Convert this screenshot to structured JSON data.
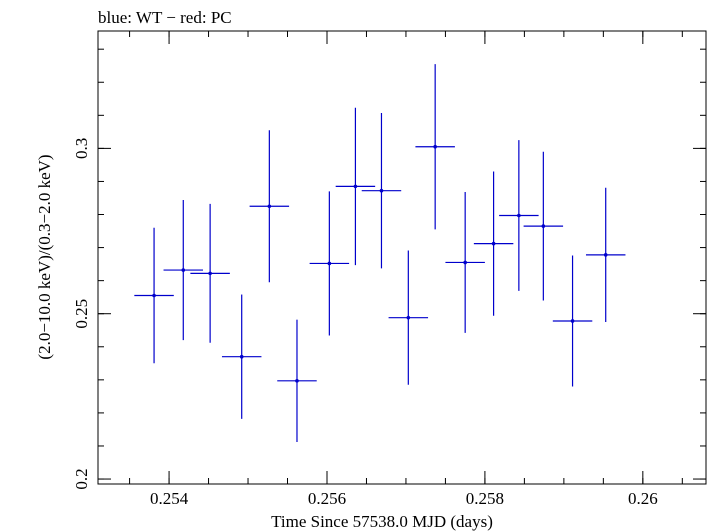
{
  "chart_data": {
    "type": "scatter",
    "title": "blue: WT − red: PC",
    "xlabel": "Time Since 57538.0 MJD (days)",
    "ylabel": "(2.0−10.0 keV)/(0.3−2.0 keV)",
    "xlim": [
      0.2531,
      0.2608
    ],
    "ylim": [
      0.1985,
      0.3355
    ],
    "grid": false,
    "x_ticks": [
      {
        "value": 0.254,
        "label": "0.254"
      },
      {
        "value": 0.256,
        "label": "0.256"
      },
      {
        "value": 0.258,
        "label": "0.258"
      },
      {
        "value": 0.26,
        "label": "0.26"
      }
    ],
    "y_ticks": [
      {
        "value": 0.2,
        "label": "0.2"
      },
      {
        "value": 0.25,
        "label": "0.25"
      },
      {
        "value": 0.3,
        "label": "0.3"
      }
    ],
    "x_minor_step": 0.0005,
    "y_minor_step": 0.01,
    "series": [
      {
        "name": "WT",
        "color": "#0000cc",
        "points": [
          {
            "x": 0.25381,
            "y": 0.2555,
            "xerr": 0.00025,
            "yerr": 0.0205
          },
          {
            "x": 0.25418,
            "y": 0.2632,
            "xerr": 0.00025,
            "yerr": 0.0212
          },
          {
            "x": 0.25452,
            "y": 0.2622,
            "xerr": 0.00025,
            "yerr": 0.021
          },
          {
            "x": 0.25492,
            "y": 0.237,
            "xerr": 0.00025,
            "yerr": 0.0188
          },
          {
            "x": 0.25527,
            "y": 0.2825,
            "xerr": 0.00025,
            "yerr": 0.023
          },
          {
            "x": 0.25562,
            "y": 0.2297,
            "xerr": 0.00025,
            "yerr": 0.0185
          },
          {
            "x": 0.25603,
            "y": 0.2652,
            "xerr": 0.00025,
            "yerr": 0.0218
          },
          {
            "x": 0.25636,
            "y": 0.2885,
            "xerr": 0.00025,
            "yerr": 0.0238
          },
          {
            "x": 0.25669,
            "y": 0.2872,
            "xerr": 0.00025,
            "yerr": 0.0235
          },
          {
            "x": 0.25703,
            "y": 0.2488,
            "xerr": 0.00025,
            "yerr": 0.0203
          },
          {
            "x": 0.25737,
            "y": 0.3005,
            "xerr": 0.00025,
            "yerr": 0.025
          },
          {
            "x": 0.25775,
            "y": 0.2655,
            "xerr": 0.00025,
            "yerr": 0.0213
          },
          {
            "x": 0.25811,
            "y": 0.2712,
            "xerr": 0.00025,
            "yerr": 0.0218
          },
          {
            "x": 0.25843,
            "y": 0.2797,
            "xerr": 0.00025,
            "yerr": 0.0228
          },
          {
            "x": 0.25874,
            "y": 0.2765,
            "xerr": 0.00025,
            "yerr": 0.0225
          },
          {
            "x": 0.25911,
            "y": 0.2478,
            "xerr": 0.00025,
            "yerr": 0.0198
          },
          {
            "x": 0.25953,
            "y": 0.2678,
            "xerr": 0.00025,
            "yerr": 0.0203
          }
        ]
      }
    ]
  }
}
